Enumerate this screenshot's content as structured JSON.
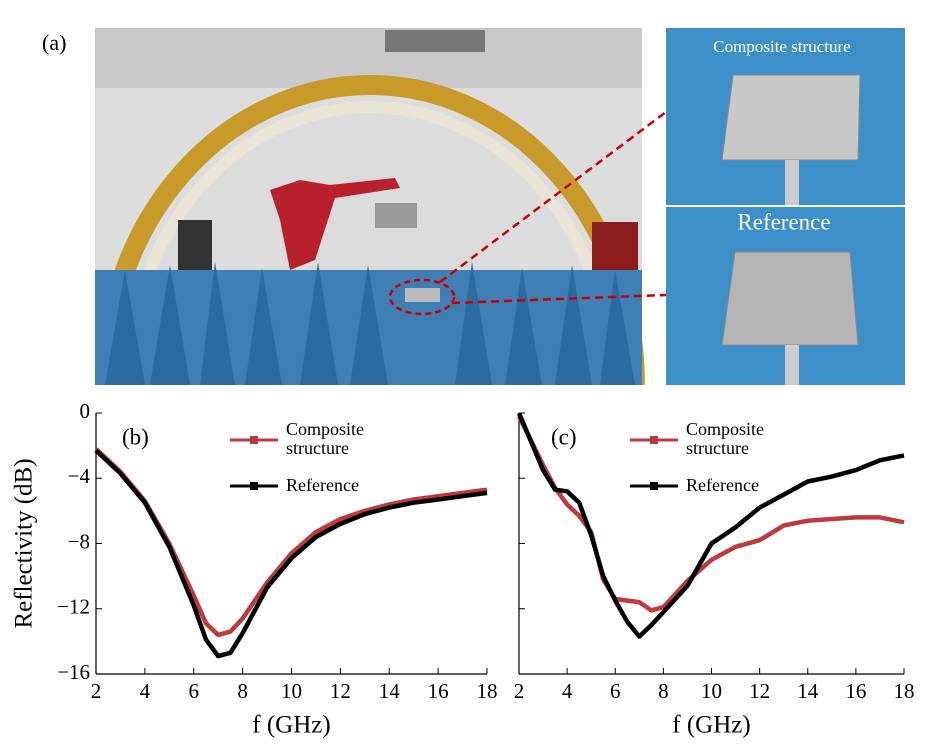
{
  "figure": {
    "panel_label": "(a)",
    "insets": [
      "Composite structure",
      "Reference"
    ]
  },
  "chart_data": [
    {
      "type": "line",
      "panel_label": "(b)",
      "xlabel": "f (GHz)",
      "ylabel": "Reflectivity (dB)",
      "x": [
        2,
        3,
        4,
        5,
        6,
        6.5,
        7,
        7.5,
        8,
        9,
        10,
        11,
        12,
        13,
        14,
        15,
        16,
        17,
        18
      ],
      "series": [
        {
          "name": "Composite structure",
          "color": "#c0393b",
          "values": [
            -2.2,
            -3.6,
            -5.4,
            -8.0,
            -11.2,
            -12.9,
            -13.6,
            -13.4,
            -12.6,
            -10.4,
            -8.6,
            -7.3,
            -6.5,
            -6.0,
            -5.6,
            -5.3,
            -5.1,
            -4.9,
            -4.7
          ]
        },
        {
          "name": "Reference",
          "color": "#000000",
          "values": [
            -2.3,
            -3.7,
            -5.5,
            -8.2,
            -11.8,
            -13.9,
            -14.9,
            -14.7,
            -13.5,
            -10.7,
            -8.9,
            -7.6,
            -6.8,
            -6.2,
            -5.8,
            -5.5,
            -5.3,
            -5.1,
            -4.9
          ]
        }
      ],
      "xlim": [
        2,
        18
      ],
      "ylim": [
        -16,
        0
      ],
      "xticks": [
        2,
        4,
        6,
        8,
        10,
        12,
        14,
        16,
        18
      ],
      "yticks": [
        0,
        {
          "value": -4,
          "label": "−4"
        },
        {
          "value": -8,
          "label": "−8"
        },
        {
          "value": -12,
          "label": "−12"
        },
        {
          "value": -16,
          "label": "−16"
        }
      ]
    },
    {
      "type": "line",
      "panel_label": "(c)",
      "xlabel": "f (GHz)",
      "x": [
        2,
        3,
        3.5,
        4,
        4.5,
        5,
        5.5,
        6,
        6.5,
        7,
        7.5,
        8,
        9,
        10,
        11,
        12,
        13,
        14,
        15,
        16,
        17,
        18
      ],
      "series": [
        {
          "name": "Composite structure",
          "color": "#c0393b",
          "values": [
            -0.2,
            -3.2,
            -4.6,
            -5.6,
            -6.3,
            -7.3,
            -10.2,
            -11.4,
            -11.5,
            -11.6,
            -12.1,
            -11.9,
            -10.3,
            -9.0,
            -8.2,
            -7.8,
            -6.9,
            -6.6,
            -6.5,
            -6.4,
            -6.4,
            -6.7
          ]
        },
        {
          "name": "Reference",
          "color": "#000000",
          "values": [
            0,
            -3.5,
            -4.7,
            -4.8,
            -5.5,
            -7.5,
            -10.0,
            -11.5,
            -12.8,
            -13.7,
            -13.0,
            -12.2,
            -10.6,
            -8.0,
            -7.0,
            -5.8,
            -5.0,
            -4.2,
            -3.9,
            -3.5,
            -2.9,
            -2.6
          ]
        }
      ],
      "xlim": [
        2,
        18
      ],
      "ylim": [
        -16,
        0
      ],
      "xticks": [
        2,
        4,
        6,
        8,
        10,
        12,
        14,
        16,
        18
      ],
      "yticks": [
        0,
        -4,
        -8,
        -12,
        -16
      ]
    }
  ]
}
